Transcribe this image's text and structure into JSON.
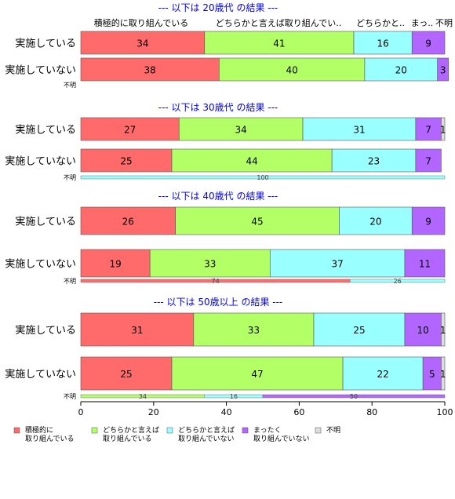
{
  "chart_data": {
    "type": "bar",
    "orientation": "horizontal",
    "stacked": true,
    "xlim": [
      0,
      100
    ],
    "xticks": [
      0,
      20,
      40,
      60,
      80,
      100
    ],
    "grid": false,
    "legend_position": "bottom-left",
    "top_category_header": [
      "積極的に取り組んでいる",
      "どちらかと言えば取り組んでい..",
      "どちらかと..",
      "まっ..",
      "不明"
    ],
    "legend": [
      {
        "label": "積極的に\n取り組んでいる",
        "color": "#FF6A6A"
      },
      {
        "label": "どちらかと言えば\n取り組んでいる",
        "color": "#B3FF66"
      },
      {
        "label": "どちらかと言えば\n取り組んでいない",
        "color": "#99FFFF"
      },
      {
        "label": "まったく\n取り組んでいない",
        "color": "#B266FF"
      },
      {
        "label": "不明",
        "color": "#DDDDDD"
      }
    ],
    "panels": [
      {
        "title": "--- 以下は 20歳代 の結果 ---",
        "rows": [
          {
            "label": "実施している",
            "values": [
              34,
              41,
              16,
              9,
              0
            ]
          },
          {
            "label": "実施していない",
            "values": [
              38,
              40,
              20,
              3,
              0
            ]
          }
        ],
        "unknown": {
          "label": "不明",
          "values": [
            0,
            0,
            0,
            0,
            0
          ]
        }
      },
      {
        "title": "--- 以下は 30歳代 の結果 ---",
        "rows": [
          {
            "label": "実施している",
            "values": [
              27,
              34,
              31,
              7,
              1
            ]
          },
          {
            "label": "実施していない",
            "values": [
              25,
              44,
              23,
              7,
              0
            ]
          }
        ],
        "unknown": {
          "label": "不明",
          "values": [
            0,
            0,
            100,
            0,
            0
          ]
        }
      },
      {
        "title": "--- 以下は 40歳代 の結果 ---",
        "rows": [
          {
            "label": "実施している",
            "values": [
              26,
              45,
              20,
              9,
              0
            ]
          },
          {
            "label": "実施していない",
            "values": [
              19,
              33,
              37,
              11,
              0
            ]
          }
        ],
        "unknown": {
          "label": "不明",
          "values": [
            74,
            0,
            26,
            0,
            0
          ]
        }
      },
      {
        "title": "--- 以下は 50歳以上 の結果 ---",
        "rows": [
          {
            "label": "実施している",
            "values": [
              31,
              33,
              25,
              10,
              1
            ]
          },
          {
            "label": "実施していない",
            "values": [
              25,
              47,
              22,
              5,
              1
            ]
          }
        ],
        "unknown": {
          "label": "不明",
          "values": [
            0,
            34,
            16,
            50,
            0
          ]
        }
      }
    ]
  }
}
